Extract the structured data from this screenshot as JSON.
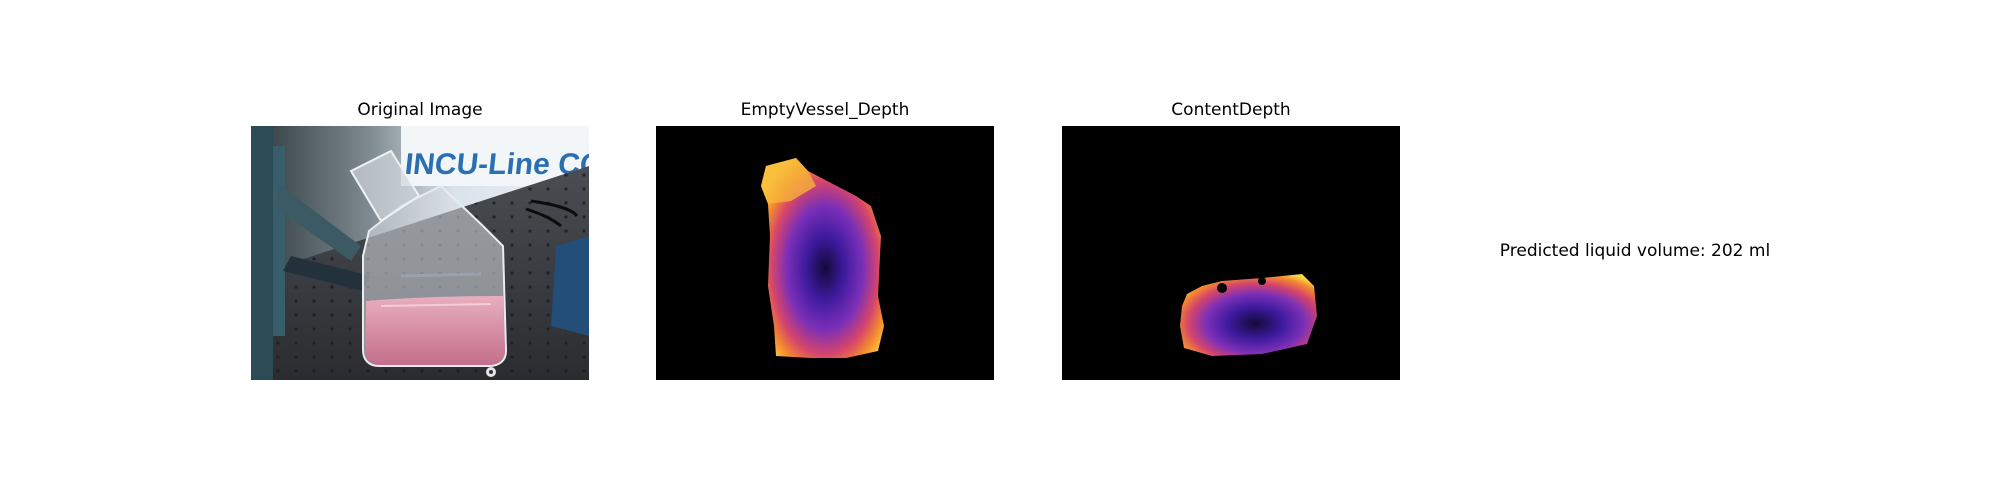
{
  "panels": [
    {
      "title": "Original Image",
      "image_text": "INCU-Line CO"
    },
    {
      "title": "EmptyVessel_Depth"
    },
    {
      "title": "ContentDepth"
    }
  ],
  "result": {
    "volume_text": "Predicted liquid volume: 202 ml"
  }
}
